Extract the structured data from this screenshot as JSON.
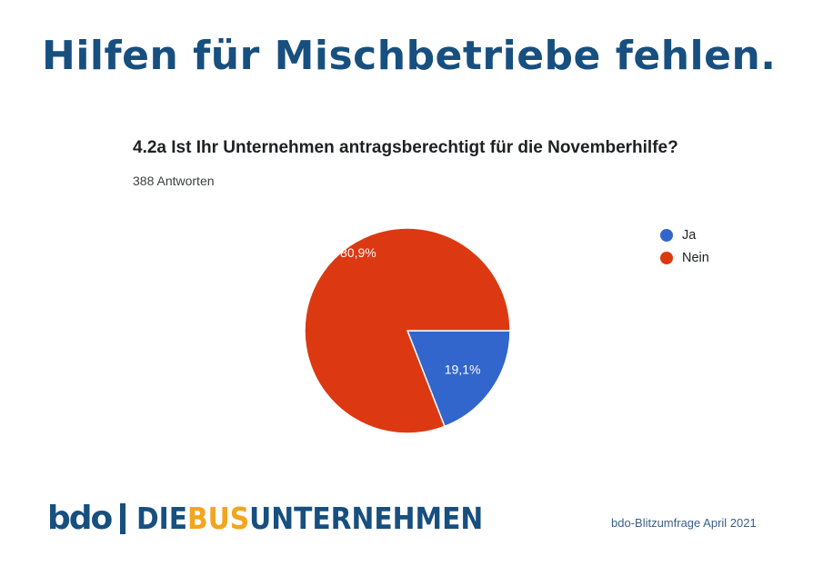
{
  "page": {
    "headline": "Hilfen für Mischbetriebe fehlen.",
    "source_note": "bdo-Blitzumfrage April 2021"
  },
  "logo": {
    "mark": "bdo",
    "word_part_1": "DIE",
    "word_part_2": "BUS",
    "word_part_3": "UNTERNEHMEN",
    "brand_color": "#174f7f",
    "accent_color": "#f2a51e"
  },
  "chart_data": {
    "type": "pie",
    "title": "4.2a Ist Ihr Unternehmen antragsberechtigt für die Novemberhilfe?",
    "subtitle": "388 Antworten",
    "legend_position": "top-right",
    "slices": [
      {
        "label": "Ja",
        "value": 19.1,
        "display": "19,1%",
        "color": "#3366cc"
      },
      {
        "label": "Nein",
        "value": 80.9,
        "display": "80,9%",
        "color": "#dc3912"
      }
    ]
  }
}
